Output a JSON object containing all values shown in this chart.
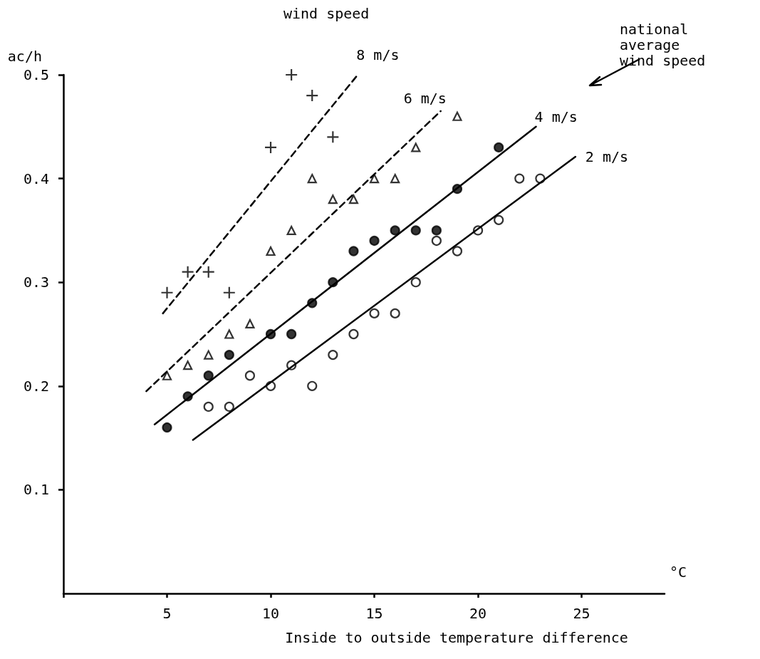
{
  "chart_data": {
    "type": "scatter",
    "xlabel": "Inside to outside temperature difference",
    "ylabel": "ac/h",
    "annotations": [
      "wind speed",
      "national\naverage\nwind speed",
      "°C"
    ],
    "xlim": [
      0,
      29
    ],
    "xticks": [
      {
        "value": 0,
        "label": null
      },
      5,
      10,
      15,
      20,
      25
    ],
    "ylim": [
      0,
      0.5
    ],
    "yticks": [
      0.1,
      0.2,
      0.3,
      0.4,
      0.5
    ],
    "grid": false,
    "legend": false,
    "series": [
      {
        "marker": "cross",
        "color": "#000000",
        "x": [
          5,
          6,
          7,
          8,
          10,
          11,
          12,
          13
        ],
        "values": [
          0.29,
          0.31,
          0.31,
          0.29,
          0.43,
          0.5,
          0.48,
          0.44
        ]
      },
      {
        "marker": "triangle",
        "color": "#ffffff",
        "x": [
          5,
          6,
          7,
          8,
          9,
          10,
          11,
          12,
          13,
          14,
          15,
          16,
          17,
          19
        ],
        "values": [
          0.21,
          0.22,
          0.23,
          0.25,
          0.26,
          0.33,
          0.35,
          0.4,
          0.38,
          0.38,
          0.4,
          0.4,
          0.43,
          0.46
        ]
      },
      {
        "marker": "circle",
        "color": "#000000",
        "x": [
          5,
          6,
          7,
          8,
          10,
          11,
          12,
          13,
          14,
          15,
          16,
          17,
          18,
          19,
          21
        ],
        "values": [
          0.16,
          0.19,
          0.21,
          0.23,
          0.25,
          0.25,
          0.28,
          0.3,
          0.33,
          0.34,
          0.35,
          0.35,
          0.35,
          0.39,
          0.43
        ]
      },
      {
        "marker": "circle",
        "color": "#ffffff",
        "x": [
          7,
          8,
          9,
          10,
          11,
          12,
          13,
          14,
          15,
          16,
          17,
          18,
          19,
          20,
          21,
          22,
          23
        ],
        "values": [
          0.18,
          0.18,
          0.21,
          0.2,
          0.22,
          0.2,
          0.23,
          0.25,
          0.27,
          0.27,
          0.3,
          0.34,
          0.33,
          0.35,
          0.36,
          0.4,
          0.4
        ]
      },
      {
        "type": "line",
        "name": "8 m/s",
        "marker": "none",
        "line_style": "dashed",
        "color": "#000000",
        "x": [
          4.8,
          14.2
        ],
        "values": [
          0.27,
          0.5
        ]
      },
      {
        "type": "line",
        "name": "6 m/s",
        "marker": "none",
        "line_style": "dashed",
        "color": "#000000",
        "x": [
          4,
          18.2
        ],
        "values": [
          0.195,
          0.465
        ]
      },
      {
        "type": "line",
        "name": "4 m/s",
        "marker": "none",
        "line_style": "solid",
        "color": "#000000",
        "x": [
          4.4,
          22.8
        ],
        "values": [
          0.163,
          0.45
        ]
      },
      {
        "type": "line",
        "name": "2 m/s",
        "marker": "none",
        "line_style": "solid",
        "color": "#000000",
        "x": [
          6.25,
          24.7
        ],
        "values": [
          0.148,
          0.421
        ]
      }
    ]
  }
}
